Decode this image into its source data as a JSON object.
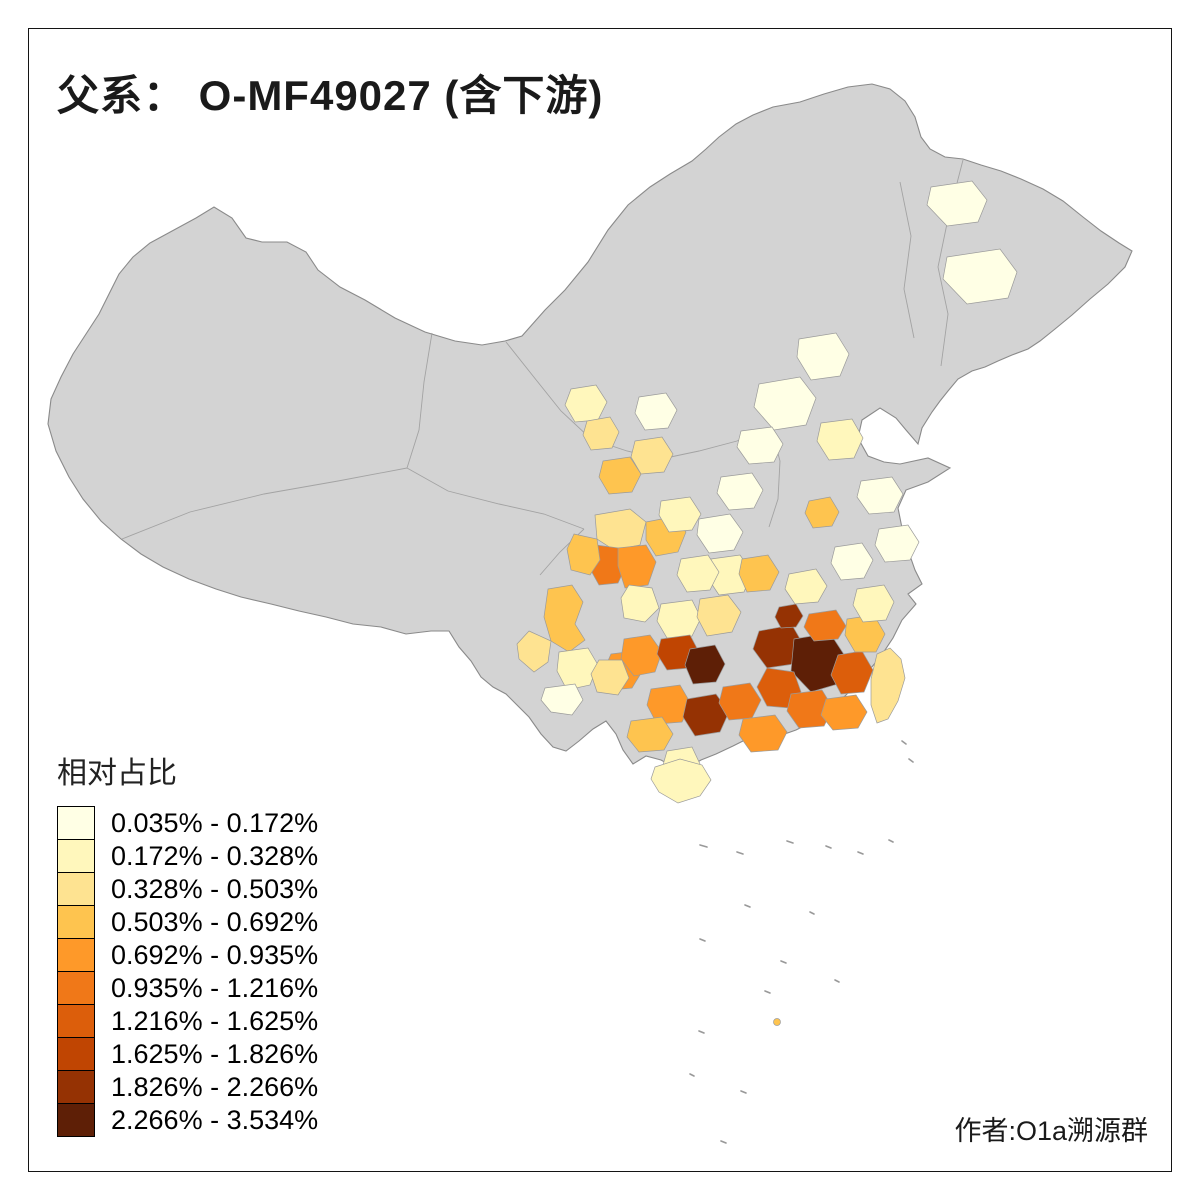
{
  "title": "父系： O-MF49027 (含下游)",
  "legend": {
    "title": "相对占比",
    "items": [
      {
        "range": "0.035% - 0.172%",
        "color": "#FFFFE5"
      },
      {
        "range": "0.172% - 0.328%",
        "color": "#FFF7BC"
      },
      {
        "range": "0.328% - 0.503%",
        "color": "#FEE391"
      },
      {
        "range": "0.503% - 0.692%",
        "color": "#FEC44F"
      },
      {
        "range": "0.692% - 0.935%",
        "color": "#FE9929"
      },
      {
        "range": "0.935% - 1.216%",
        "color": "#F07818"
      },
      {
        "range": "1.216% - 1.625%",
        "color": "#DC5E0B"
      },
      {
        "range": "1.625% - 1.826%",
        "color": "#C04502"
      },
      {
        "range": "1.826% - 2.266%",
        "color": "#953203"
      },
      {
        "range": "2.266% - 3.534%",
        "color": "#5E1F06"
      }
    ]
  },
  "credit": "作者:O1a溯源群",
  "map": {
    "land_color": "#d3d3d3",
    "border_color": "#8a8a8a",
    "background": "#ffffff"
  }
}
